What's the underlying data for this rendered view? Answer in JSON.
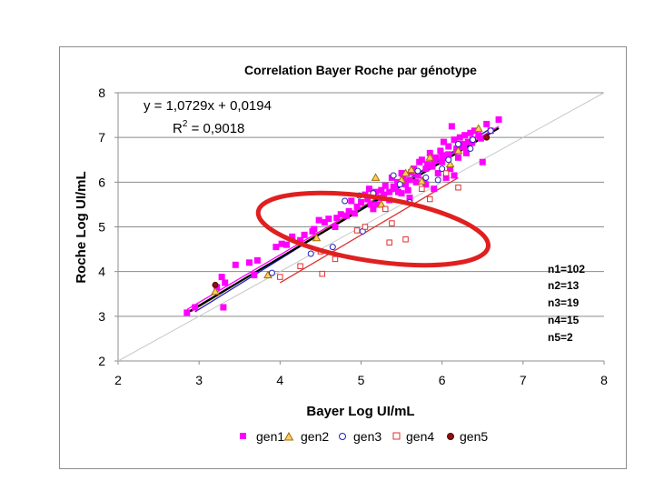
{
  "chart_data": {
    "type": "scatter",
    "title": "Correlation Bayer Roche par génotype",
    "xlabel": "Bayer Log UI/mL",
    "ylabel": "Roche Log UI/mL",
    "xlim": [
      2,
      8
    ],
    "ylim": [
      2,
      8
    ],
    "x_ticks": [
      "2",
      "3",
      "4",
      "5",
      "6",
      "7",
      "8"
    ],
    "y_ticks": [
      "2",
      "3",
      "4",
      "5",
      "6",
      "7",
      "8"
    ],
    "grid": "horizontal",
    "equation": "y = 1,0729x + 0,0194",
    "r2_prefix": "R",
    "r2_sup": "2",
    "r2_value": " = 0,9018",
    "counts": [
      "n1=102",
      "n2=13",
      "n3=19",
      "n4=15",
      "n5=2"
    ],
    "reference_line": {
      "from": [
        2,
        2
      ],
      "to": [
        8,
        8
      ],
      "color": "#c8c8c8"
    },
    "overall_fit": {
      "slope": 1.0729,
      "intercept": 0.0194,
      "x_range": [
        2.85,
        6.7
      ],
      "color": "#000000"
    },
    "highlight": {
      "shape": "ellipse",
      "color": "#e02020",
      "around": "gen4 points"
    },
    "series": [
      {
        "name": "gen1",
        "marker": "square",
        "color": "#ff00ff",
        "fill": "#ff00ff",
        "fit": {
          "x_range": [
            2.85,
            6.7
          ],
          "y_range": [
            3.15,
            7.25
          ]
        },
        "points": [
          [
            2.85,
            3.08
          ],
          [
            2.95,
            3.2
          ],
          [
            3.22,
            3.65
          ],
          [
            3.28,
            3.88
          ],
          [
            3.3,
            3.2
          ],
          [
            3.32,
            3.75
          ],
          [
            3.45,
            4.15
          ],
          [
            3.62,
            4.2
          ],
          [
            3.68,
            3.92
          ],
          [
            3.72,
            4.25
          ],
          [
            3.95,
            4.55
          ],
          [
            4.02,
            4.62
          ],
          [
            4.08,
            4.6
          ],
          [
            4.15,
            4.78
          ],
          [
            4.3,
            4.82
          ],
          [
            4.42,
            4.95
          ],
          [
            4.48,
            5.15
          ],
          [
            4.55,
            5.1
          ],
          [
            4.6,
            5.18
          ],
          [
            4.68,
            5.0
          ],
          [
            4.75,
            5.28
          ],
          [
            4.82,
            5.25
          ],
          [
            4.88,
            5.58
          ],
          [
            4.92,
            5.3
          ],
          [
            5.0,
            5.55
          ],
          [
            5.05,
            5.72
          ],
          [
            5.1,
            5.85
          ],
          [
            5.15,
            5.4
          ],
          [
            5.2,
            5.5
          ],
          [
            5.25,
            5.65
          ],
          [
            5.3,
            5.92
          ],
          [
            5.35,
            5.78
          ],
          [
            5.38,
            6.1
          ],
          [
            5.42,
            5.85
          ],
          [
            5.45,
            6.0
          ],
          [
            5.5,
            6.2
          ],
          [
            5.55,
            5.95
          ],
          [
            5.6,
            6.05
          ],
          [
            5.65,
            6.3
          ],
          [
            5.7,
            6.15
          ],
          [
            5.72,
            6.45
          ],
          [
            5.75,
            6.5
          ],
          [
            5.78,
            6.05
          ],
          [
            5.82,
            6.4
          ],
          [
            5.85,
            6.65
          ],
          [
            5.88,
            6.35
          ],
          [
            5.92,
            6.55
          ],
          [
            5.95,
            6.2
          ],
          [
            5.98,
            6.7
          ],
          [
            6.0,
            6.45
          ],
          [
            6.02,
            6.9
          ],
          [
            6.05,
            6.6
          ],
          [
            6.08,
            6.8
          ],
          [
            6.1,
            6.3
          ],
          [
            6.12,
            7.25
          ],
          [
            6.15,
            6.95
          ],
          [
            6.18,
            6.75
          ],
          [
            6.2,
            6.55
          ],
          [
            6.22,
            7.0
          ],
          [
            6.25,
            6.85
          ],
          [
            6.28,
            7.05
          ],
          [
            6.3,
            6.65
          ],
          [
            6.32,
            6.9
          ],
          [
            6.35,
            7.1
          ],
          [
            6.38,
            6.95
          ],
          [
            6.4,
            7.15
          ],
          [
            6.45,
            7.05
          ],
          [
            6.5,
            6.45
          ],
          [
            6.55,
            7.3
          ],
          [
            6.6,
            7.15
          ],
          [
            6.7,
            7.4
          ],
          [
            5.35,
            5.6
          ],
          [
            5.5,
            5.75
          ],
          [
            5.6,
            5.65
          ],
          [
            5.8,
            5.95
          ],
          [
            5.9,
            5.85
          ],
          [
            6.05,
            6.1
          ],
          [
            6.15,
            6.15
          ],
          [
            4.95,
            5.45
          ],
          [
            5.08,
            5.62
          ],
          [
            5.18,
            5.78
          ],
          [
            5.28,
            5.72
          ],
          [
            5.4,
            5.9
          ],
          [
            5.52,
            6.08
          ],
          [
            5.62,
            6.22
          ],
          [
            5.68,
            6.0
          ],
          [
            5.8,
            6.3
          ],
          [
            5.9,
            6.48
          ],
          [
            6.0,
            6.58
          ],
          [
            6.08,
            6.62
          ],
          [
            6.18,
            6.7
          ],
          [
            6.27,
            6.78
          ],
          [
            6.37,
            6.88
          ],
          [
            6.48,
            6.98
          ],
          [
            5.58,
            5.82
          ],
          [
            5.46,
            5.78
          ],
          [
            4.25,
            4.7
          ],
          [
            4.4,
            4.9
          ],
          [
            4.7,
            5.2
          ],
          [
            4.85,
            5.35
          ],
          [
            5.12,
            5.5
          ],
          [
            5.25,
            5.82
          ]
        ]
      },
      {
        "name": "gen2",
        "marker": "triangle",
        "color": "#a07000",
        "fill": "#ffcc66",
        "fit": {
          "x_range": [
            2.9,
            6.6
          ],
          "y_range": [
            3.1,
            7.2
          ]
        },
        "points": [
          [
            3.2,
            3.55
          ],
          [
            3.85,
            3.92
          ],
          [
            4.45,
            4.75
          ],
          [
            5.18,
            6.1
          ],
          [
            5.25,
            5.5
          ],
          [
            5.5,
            6.05
          ],
          [
            5.55,
            6.2
          ],
          [
            5.62,
            6.28
          ],
          [
            5.75,
            6.02
          ],
          [
            5.85,
            6.55
          ],
          [
            6.1,
            6.4
          ],
          [
            6.2,
            6.7
          ],
          [
            6.45,
            7.2
          ]
        ]
      },
      {
        "name": "gen3",
        "marker": "circle",
        "color": "#2020c0",
        "fill": "#ffffff",
        "fit": {
          "x_range": [
            2.95,
            6.6
          ],
          "y_range": [
            3.1,
            7.2
          ]
        },
        "points": [
          [
            3.9,
            3.97
          ],
          [
            4.38,
            4.4
          ],
          [
            4.65,
            4.55
          ],
          [
            4.8,
            5.58
          ],
          [
            4.98,
            5.7
          ],
          [
            5.02,
            4.9
          ],
          [
            5.15,
            5.75
          ],
          [
            5.4,
            6.15
          ],
          [
            5.48,
            5.95
          ],
          [
            5.6,
            5.55
          ],
          [
            5.7,
            6.25
          ],
          [
            5.8,
            6.1
          ],
          [
            5.95,
            6.05
          ],
          [
            6.0,
            6.3
          ],
          [
            6.08,
            6.5
          ],
          [
            6.2,
            6.85
          ],
          [
            6.35,
            6.75
          ],
          [
            6.38,
            6.95
          ],
          [
            6.6,
            7.15
          ]
        ]
      },
      {
        "name": "gen4",
        "marker": "square",
        "color": "#e03030",
        "fill": "#ffffff",
        "fit": {
          "x_range": [
            4.0,
            6.2
          ],
          "y_range": [
            3.75,
            6.1
          ]
        },
        "points": [
          [
            4.0,
            3.88
          ],
          [
            4.25,
            4.12
          ],
          [
            4.5,
            4.45
          ],
          [
            4.52,
            3.95
          ],
          [
            4.68,
            4.28
          ],
          [
            4.95,
            4.92
          ],
          [
            5.05,
            5.0
          ],
          [
            5.3,
            5.4
          ],
          [
            5.35,
            4.65
          ],
          [
            5.38,
            5.08
          ],
          [
            5.55,
            4.72
          ],
          [
            5.75,
            5.85
          ],
          [
            5.85,
            5.62
          ],
          [
            6.05,
            6.2
          ],
          [
            6.2,
            5.88
          ]
        ]
      },
      {
        "name": "gen5",
        "marker": "circle",
        "color": "#5a0000",
        "fill": "#8b1010",
        "fit": null,
        "points": [
          [
            3.2,
            3.7
          ],
          [
            6.55,
            7.0
          ]
        ]
      }
    ]
  },
  "legend": [
    {
      "label": "gen1"
    },
    {
      "label": "gen2"
    },
    {
      "label": "gen3"
    },
    {
      "label": "gen4"
    },
    {
      "label": "gen5"
    }
  ]
}
